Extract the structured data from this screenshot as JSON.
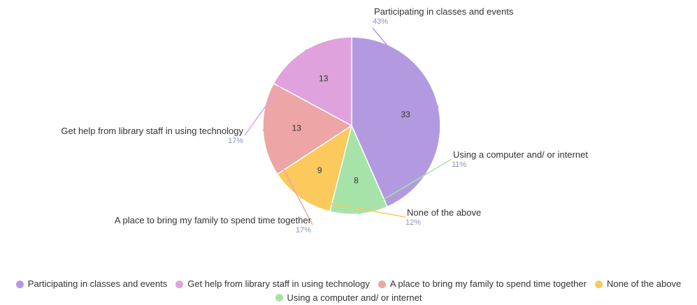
{
  "chart_data": {
    "type": "pie",
    "title": "",
    "slices": [
      {
        "label": "Participating in classes and events",
        "value": 33,
        "percent": "43%",
        "color": "#b39ae0"
      },
      {
        "label": "Using a computer and/ or internet",
        "value": 8,
        "percent": "11%",
        "color": "#a6e3a8"
      },
      {
        "label": "None of the above",
        "value": 9,
        "percent": "12%",
        "color": "#fbc95c"
      },
      {
        "label": "A place to bring my family to spend time together",
        "value": 13,
        "percent": "17%",
        "color": "#eda5a5"
      },
      {
        "label": "Get help from library staff in using technology",
        "value": 13,
        "percent": "17%",
        "color": "#e0a2dc"
      }
    ],
    "legend_position": "bottom",
    "legend": [
      "Participating in classes and events",
      "Get help from library staff in using technology",
      "A place to bring my family to spend time together",
      "None of the above",
      "Using a computer and/ or internet"
    ]
  }
}
